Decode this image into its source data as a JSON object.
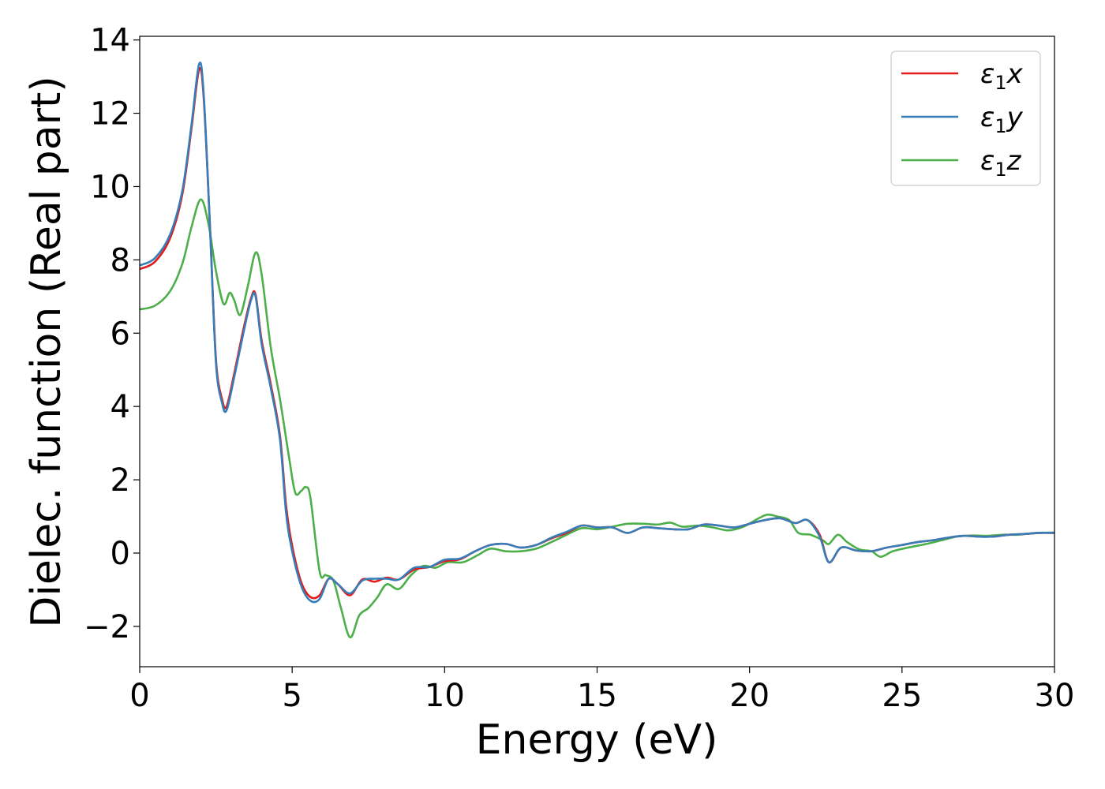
{
  "chart_data": {
    "type": "line",
    "title": "",
    "xlabel": "Energy (eV)",
    "ylabel": "Dielec. function (Real part)",
    "xlim": [
      0,
      30
    ],
    "ylim": [
      -3.1,
      14.1
    ],
    "xticks": [
      0,
      5,
      10,
      15,
      20,
      25,
      30
    ],
    "xtick_labels": [
      "0",
      "5",
      "10",
      "15",
      "20",
      "25",
      "30"
    ],
    "yticks": [
      -2,
      0,
      2,
      4,
      6,
      8,
      10,
      12,
      14
    ],
    "ytick_labels": [
      "−2",
      "0",
      "2",
      "4",
      "6",
      "8",
      "10",
      "12",
      "14"
    ],
    "grid": false,
    "legend_position": "top-right",
    "series": [
      {
        "name": "ε1x",
        "legend_base": "ε",
        "legend_sub": "1",
        "legend_suffix": "x",
        "color": "#e41a1c",
        "points": [
          [
            0,
            7.75
          ],
          [
            0.5,
            7.95
          ],
          [
            1,
            8.6
          ],
          [
            1.4,
            9.8
          ],
          [
            1.7,
            11.6
          ],
          [
            1.95,
            13.2
          ],
          [
            2.1,
            12.4
          ],
          [
            2.3,
            9.0
          ],
          [
            2.5,
            5.3
          ],
          [
            2.7,
            4.2
          ],
          [
            2.85,
            4.0
          ],
          [
            3.1,
            4.9
          ],
          [
            3.4,
            6.1
          ],
          [
            3.65,
            6.95
          ],
          [
            3.8,
            7.05
          ],
          [
            4.0,
            5.8
          ],
          [
            4.3,
            4.6
          ],
          [
            4.6,
            3.2
          ],
          [
            4.8,
            1.3
          ],
          [
            5.0,
            0.2
          ],
          [
            5.3,
            -0.8
          ],
          [
            5.6,
            -1.2
          ],
          [
            5.9,
            -1.15
          ],
          [
            6.2,
            -0.7
          ],
          [
            6.5,
            -0.85
          ],
          [
            6.9,
            -1.15
          ],
          [
            7.3,
            -0.72
          ],
          [
            7.7,
            -0.78
          ],
          [
            8.1,
            -0.67
          ],
          [
            8.5,
            -0.72
          ],
          [
            9.0,
            -0.45
          ],
          [
            9.5,
            -0.38
          ],
          [
            10.0,
            -0.22
          ],
          [
            10.5,
            -0.17
          ],
          [
            11.0,
            0.05
          ],
          [
            11.5,
            0.22
          ],
          [
            12.0,
            0.25
          ],
          [
            12.5,
            0.15
          ],
          [
            13.0,
            0.22
          ],
          [
            13.5,
            0.4
          ],
          [
            14.0,
            0.55
          ],
          [
            14.5,
            0.75
          ],
          [
            15.0,
            0.7
          ],
          [
            15.5,
            0.7
          ],
          [
            16.0,
            0.55
          ],
          [
            16.5,
            0.7
          ],
          [
            17.0,
            0.68
          ],
          [
            17.5,
            0.65
          ],
          [
            18.0,
            0.65
          ],
          [
            18.5,
            0.78
          ],
          [
            19.0,
            0.75
          ],
          [
            19.5,
            0.7
          ],
          [
            20.0,
            0.8
          ],
          [
            20.5,
            0.9
          ],
          [
            21.0,
            0.95
          ],
          [
            21.5,
            0.82
          ],
          [
            21.9,
            0.9
          ],
          [
            22.3,
            0.5
          ],
          [
            22.6,
            -0.25
          ],
          [
            23.0,
            0.15
          ],
          [
            23.5,
            0.07
          ],
          [
            24.0,
            0.05
          ],
          [
            24.5,
            0.15
          ],
          [
            25.0,
            0.22
          ],
          [
            25.5,
            0.3
          ],
          [
            26.0,
            0.35
          ],
          [
            26.5,
            0.42
          ],
          [
            27.0,
            0.47
          ],
          [
            27.5,
            0.45
          ],
          [
            28.0,
            0.45
          ],
          [
            28.5,
            0.5
          ],
          [
            29.0,
            0.52
          ],
          [
            29.5,
            0.55
          ],
          [
            30,
            0.55
          ]
        ]
      },
      {
        "name": "ε1y",
        "legend_base": "ε",
        "legend_sub": "1",
        "legend_suffix": "y",
        "color": "#377eb8",
        "points": [
          [
            0,
            7.85
          ],
          [
            0.5,
            8.05
          ],
          [
            1,
            8.7
          ],
          [
            1.4,
            9.9
          ],
          [
            1.7,
            11.7
          ],
          [
            1.95,
            13.35
          ],
          [
            2.1,
            12.5
          ],
          [
            2.3,
            9.0
          ],
          [
            2.5,
            5.2
          ],
          [
            2.7,
            4.1
          ],
          [
            2.85,
            3.9
          ],
          [
            3.1,
            4.8
          ],
          [
            3.4,
            6.0
          ],
          [
            3.65,
            6.9
          ],
          [
            3.8,
            7.0
          ],
          [
            4.0,
            5.7
          ],
          [
            4.3,
            4.5
          ],
          [
            4.6,
            3.1
          ],
          [
            4.8,
            1.1
          ],
          [
            5.0,
            0.05
          ],
          [
            5.3,
            -0.9
          ],
          [
            5.6,
            -1.3
          ],
          [
            5.9,
            -1.25
          ],
          [
            6.2,
            -0.7
          ],
          [
            6.5,
            -0.85
          ],
          [
            6.9,
            -1.1
          ],
          [
            7.3,
            -0.75
          ],
          [
            7.7,
            -0.7
          ],
          [
            8.1,
            -0.7
          ],
          [
            8.5,
            -0.72
          ],
          [
            9.0,
            -0.4
          ],
          [
            9.5,
            -0.38
          ],
          [
            10.0,
            -0.18
          ],
          [
            10.5,
            -0.15
          ],
          [
            11.0,
            0.05
          ],
          [
            11.5,
            0.22
          ],
          [
            12.0,
            0.25
          ],
          [
            12.5,
            0.15
          ],
          [
            13.0,
            0.22
          ],
          [
            13.5,
            0.42
          ],
          [
            14.0,
            0.58
          ],
          [
            14.5,
            0.75
          ],
          [
            15.0,
            0.7
          ],
          [
            15.5,
            0.7
          ],
          [
            16.0,
            0.55
          ],
          [
            16.5,
            0.7
          ],
          [
            17.0,
            0.68
          ],
          [
            17.5,
            0.65
          ],
          [
            18.0,
            0.65
          ],
          [
            18.5,
            0.78
          ],
          [
            19.0,
            0.75
          ],
          [
            19.5,
            0.7
          ],
          [
            20.0,
            0.8
          ],
          [
            20.5,
            0.9
          ],
          [
            21.0,
            0.95
          ],
          [
            21.5,
            0.82
          ],
          [
            21.9,
            0.9
          ],
          [
            22.3,
            0.45
          ],
          [
            22.6,
            -0.25
          ],
          [
            23.0,
            0.15
          ],
          [
            23.5,
            0.07
          ],
          [
            24.0,
            0.05
          ],
          [
            24.5,
            0.15
          ],
          [
            25.0,
            0.22
          ],
          [
            25.5,
            0.3
          ],
          [
            26.0,
            0.35
          ],
          [
            26.5,
            0.42
          ],
          [
            27.0,
            0.47
          ],
          [
            27.5,
            0.45
          ],
          [
            28.0,
            0.45
          ],
          [
            28.5,
            0.5
          ],
          [
            29.0,
            0.52
          ],
          [
            29.5,
            0.55
          ],
          [
            30,
            0.55
          ]
        ]
      },
      {
        "name": "ε1z",
        "legend_base": "ε",
        "legend_sub": "1",
        "legend_suffix": "z",
        "color": "#4daf4a",
        "points": [
          [
            0,
            6.65
          ],
          [
            0.5,
            6.75
          ],
          [
            1,
            7.15
          ],
          [
            1.4,
            7.9
          ],
          [
            1.7,
            8.9
          ],
          [
            2.0,
            9.65
          ],
          [
            2.25,
            9.0
          ],
          [
            2.5,
            7.7
          ],
          [
            2.75,
            6.8
          ],
          [
            2.95,
            7.1
          ],
          [
            3.1,
            6.9
          ],
          [
            3.3,
            6.5
          ],
          [
            3.55,
            7.3
          ],
          [
            3.8,
            8.2
          ],
          [
            4.0,
            7.6
          ],
          [
            4.3,
            5.6
          ],
          [
            4.6,
            4.2
          ],
          [
            4.9,
            2.6
          ],
          [
            5.1,
            1.65
          ],
          [
            5.3,
            1.7
          ],
          [
            5.45,
            1.8
          ],
          [
            5.6,
            1.5
          ],
          [
            5.9,
            -0.5
          ],
          [
            6.1,
            -0.6
          ],
          [
            6.35,
            -0.75
          ],
          [
            6.6,
            -1.5
          ],
          [
            6.9,
            -2.3
          ],
          [
            7.2,
            -1.7
          ],
          [
            7.5,
            -1.5
          ],
          [
            7.8,
            -1.2
          ],
          [
            8.1,
            -0.85
          ],
          [
            8.5,
            -0.98
          ],
          [
            8.9,
            -0.6
          ],
          [
            9.3,
            -0.35
          ],
          [
            9.7,
            -0.4
          ],
          [
            10.1,
            -0.25
          ],
          [
            10.6,
            -0.25
          ],
          [
            11.1,
            -0.05
          ],
          [
            11.5,
            0.12
          ],
          [
            12.0,
            0.05
          ],
          [
            12.5,
            0.05
          ],
          [
            13.0,
            0.12
          ],
          [
            13.5,
            0.3
          ],
          [
            14.0,
            0.5
          ],
          [
            14.5,
            0.68
          ],
          [
            15.0,
            0.65
          ],
          [
            15.5,
            0.72
          ],
          [
            16.0,
            0.8
          ],
          [
            16.5,
            0.8
          ],
          [
            17.0,
            0.78
          ],
          [
            17.4,
            0.83
          ],
          [
            17.8,
            0.72
          ],
          [
            18.3,
            0.75
          ],
          [
            18.8,
            0.7
          ],
          [
            19.3,
            0.62
          ],
          [
            19.8,
            0.72
          ],
          [
            20.3,
            0.95
          ],
          [
            20.6,
            1.05
          ],
          [
            20.9,
            1.0
          ],
          [
            21.3,
            0.9
          ],
          [
            21.6,
            0.55
          ],
          [
            22.0,
            0.5
          ],
          [
            22.4,
            0.35
          ],
          [
            22.6,
            0.25
          ],
          [
            22.9,
            0.5
          ],
          [
            23.2,
            0.3
          ],
          [
            23.6,
            0.1
          ],
          [
            24.0,
            0.05
          ],
          [
            24.3,
            -0.1
          ],
          [
            24.7,
            0.05
          ],
          [
            25.2,
            0.15
          ],
          [
            25.8,
            0.25
          ],
          [
            26.3,
            0.35
          ],
          [
            26.8,
            0.45
          ],
          [
            27.3,
            0.48
          ],
          [
            27.8,
            0.47
          ],
          [
            28.3,
            0.5
          ],
          [
            28.8,
            0.5
          ],
          [
            29.4,
            0.55
          ],
          [
            30,
            0.56
          ]
        ]
      }
    ]
  }
}
